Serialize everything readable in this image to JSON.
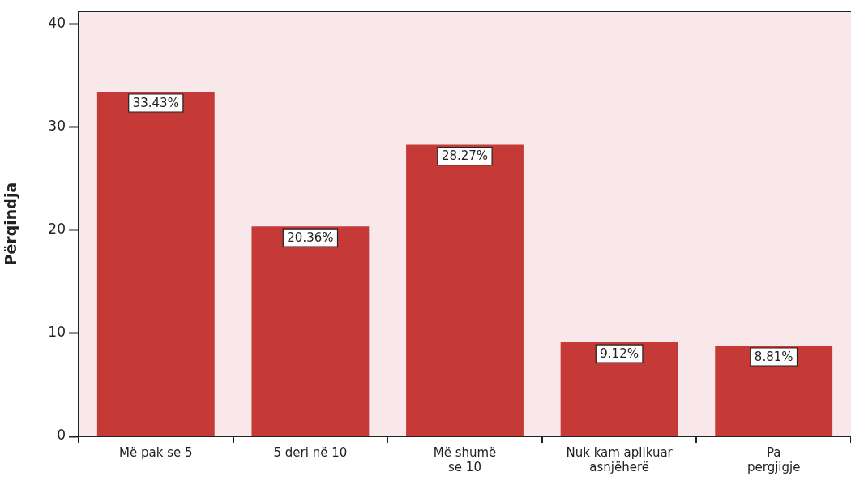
{
  "chart_data": {
    "type": "bar",
    "ylabel": "Përqindja",
    "categories": [
      "Më pak se 5",
      "5 deri në 10",
      "Më shumë\nse 10",
      "Nuk kam aplikuar\nasnjëherë",
      "Pa\npergjigje"
    ],
    "values": [
      33.43,
      20.36,
      28.27,
      9.12,
      8.81
    ],
    "value_labels": [
      "33.43%",
      "20.36%",
      "28.27%",
      "9.12%",
      "8.81%"
    ],
    "color": "#c53a37",
    "ylim": [
      0,
      41.2
    ],
    "yticks": [
      0,
      10,
      20,
      30,
      40
    ],
    "grid": false,
    "legend": false
  }
}
